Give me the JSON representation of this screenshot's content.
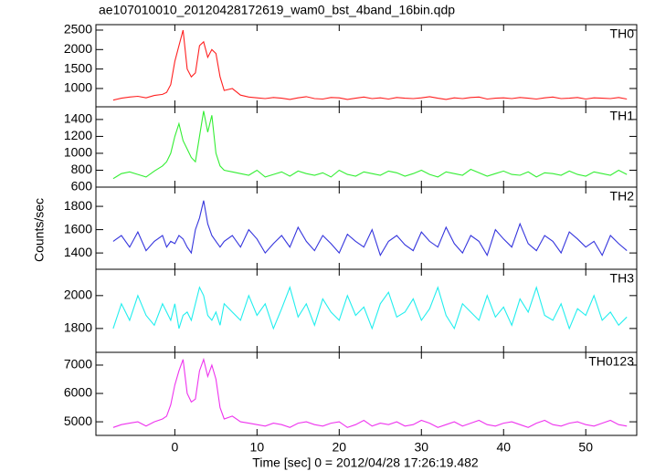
{
  "title": "ae107010010_20120428172619_wam0_bst_4band_16bin.qdp",
  "ylabel": "Counts/sec",
  "xlabel": "Time [sec] 0 = 2012/04/28 17:26:19.482",
  "chart_data": [
    {
      "type": "line",
      "title": "TH0",
      "color": "#ff2020",
      "x": [
        -7.5,
        -6.5,
        -5.5,
        -4.5,
        -3.5,
        -2.5,
        -1.5,
        -1,
        -0.5,
        0,
        0.5,
        1,
        1.5,
        2,
        2.5,
        3,
        3.5,
        4,
        4.5,
        5,
        5.5,
        6,
        7,
        8,
        9,
        10,
        11,
        12,
        13,
        14,
        15,
        16,
        17,
        18,
        19,
        20,
        21,
        22,
        23,
        24,
        25,
        26,
        27,
        28,
        29,
        30,
        31,
        32,
        33,
        34,
        35,
        36,
        37,
        38,
        39,
        40,
        41,
        42,
        43,
        44,
        45,
        46,
        47,
        48,
        49,
        50,
        51,
        52,
        53,
        54,
        55
      ],
      "values": [
        700,
        750,
        780,
        800,
        760,
        820,
        850,
        900,
        1100,
        1700,
        2100,
        2500,
        1500,
        1300,
        1400,
        2100,
        2200,
        1800,
        2000,
        1900,
        1300,
        950,
        1000,
        830,
        780,
        760,
        740,
        770,
        750,
        720,
        760,
        790,
        740,
        730,
        770,
        760,
        720,
        750,
        780,
        740,
        760,
        730,
        770,
        750,
        740,
        760,
        790,
        750,
        720,
        760,
        740,
        770,
        780,
        730,
        750,
        760,
        740,
        770,
        750,
        730,
        760,
        780,
        740,
        750,
        770,
        730,
        760,
        750,
        740,
        770,
        730
      ],
      "xlim": [
        -9.6,
        56.2
      ],
      "ylim": [
        530,
        2640
      ],
      "yticks": [
        1000,
        1500,
        2000,
        2500
      ]
    },
    {
      "type": "line",
      "title": "TH1",
      "color": "#33ee33",
      "x": [
        -7.5,
        -6.5,
        -5.5,
        -4.5,
        -3.5,
        -2.5,
        -1.5,
        -1,
        -0.5,
        0,
        0.5,
        1,
        1.5,
        2,
        2.5,
        3,
        3.5,
        4,
        4.5,
        5,
        5.5,
        6,
        7,
        8,
        9,
        10,
        11,
        12,
        13,
        14,
        15,
        16,
        17,
        18,
        19,
        20,
        21,
        22,
        23,
        24,
        25,
        26,
        27,
        28,
        29,
        30,
        31,
        32,
        33,
        34,
        35,
        36,
        37,
        38,
        39,
        40,
        41,
        42,
        43,
        44,
        45,
        46,
        47,
        48,
        49,
        50,
        51,
        52,
        53,
        54,
        55
      ],
      "values": [
        700,
        760,
        780,
        750,
        720,
        790,
        850,
        900,
        1000,
        1200,
        1350,
        1150,
        1050,
        950,
        900,
        1200,
        1500,
        1250,
        1450,
        1000,
        850,
        800,
        780,
        760,
        740,
        800,
        720,
        750,
        780,
        730,
        790,
        760,
        740,
        770,
        720,
        800,
        750,
        730,
        780,
        760,
        740,
        790,
        770,
        730,
        760,
        800,
        750,
        720,
        780,
        760,
        740,
        810,
        770,
        730,
        760,
        790,
        750,
        740,
        780,
        720,
        770,
        760,
        740,
        790,
        750,
        730,
        780,
        760,
        740,
        800,
        750
      ],
      "xlim": [
        -9.6,
        56.2
      ],
      "ylim": [
        600,
        1550
      ],
      "yticks": [
        600,
        800,
        1000,
        1200,
        1400
      ]
    },
    {
      "type": "line",
      "title": "TH2",
      "color": "#3535dd",
      "x": [
        -7.5,
        -6.5,
        -5.5,
        -4.5,
        -3.5,
        -2.5,
        -1.5,
        -1,
        -0.5,
        0,
        0.5,
        1,
        1.5,
        2,
        2.5,
        3,
        3.5,
        4,
        4.5,
        5,
        5.5,
        6,
        7,
        8,
        9,
        10,
        11,
        12,
        13,
        14,
        15,
        16,
        17,
        18,
        19,
        20,
        21,
        22,
        23,
        24,
        25,
        26,
        27,
        28,
        29,
        30,
        31,
        32,
        33,
        34,
        35,
        36,
        37,
        38,
        39,
        40,
        41,
        42,
        43,
        44,
        45,
        46,
        47,
        48,
        49,
        50,
        51,
        52,
        53,
        54,
        55
      ],
      "values": [
        1500,
        1550,
        1450,
        1580,
        1420,
        1500,
        1550,
        1450,
        1500,
        1480,
        1550,
        1520,
        1450,
        1400,
        1600,
        1700,
        1850,
        1650,
        1550,
        1500,
        1450,
        1500,
        1550,
        1450,
        1600,
        1520,
        1400,
        1480,
        1550,
        1450,
        1620,
        1500,
        1420,
        1550,
        1480,
        1400,
        1560,
        1500,
        1450,
        1600,
        1380,
        1500,
        1550,
        1470,
        1420,
        1580,
        1500,
        1450,
        1620,
        1480,
        1400,
        1550,
        1500,
        1380,
        1600,
        1520,
        1450,
        1650,
        1480,
        1420,
        1550,
        1500,
        1400,
        1580,
        1520,
        1450,
        1500,
        1380,
        1550,
        1480,
        1420
      ],
      "xlim": [
        -9.6,
        56.2
      ],
      "ylim": [
        1260,
        1965
      ],
      "yticks": [
        1400,
        1600,
        1800
      ]
    },
    {
      "type": "line",
      "title": "TH3",
      "color": "#22eeee",
      "x": [
        -7.5,
        -6.5,
        -5.5,
        -4.5,
        -3.5,
        -2.5,
        -1.5,
        -1,
        -0.5,
        0,
        0.5,
        1,
        1.5,
        2,
        2.5,
        3,
        3.5,
        4,
        4.5,
        5,
        5.5,
        6,
        7,
        8,
        9,
        10,
        11,
        12,
        13,
        14,
        15,
        16,
        17,
        18,
        19,
        20,
        21,
        22,
        23,
        24,
        25,
        26,
        27,
        28,
        29,
        30,
        31,
        32,
        33,
        34,
        35,
        36,
        37,
        38,
        39,
        40,
        41,
        42,
        43,
        44,
        45,
        46,
        47,
        48,
        49,
        50,
        51,
        52,
        53,
        54,
        55
      ],
      "values": [
        1800,
        1950,
        1850,
        2000,
        1880,
        1820,
        1950,
        1900,
        1850,
        1950,
        1800,
        1880,
        1900,
        1850,
        1950,
        2050,
        2000,
        1880,
        1850,
        1900,
        1820,
        1950,
        1900,
        1850,
        2000,
        1880,
        1950,
        1800,
        1920,
        2050,
        1870,
        1950,
        1820,
        1980,
        1900,
        1850,
        2000,
        1880,
        1930,
        1800,
        1950,
        2020,
        1870,
        1900,
        1980,
        1850,
        1920,
        2050,
        1880,
        1800,
        1950,
        1900,
        1850,
        2000,
        1870,
        1930,
        1820,
        1980,
        1900,
        2050,
        1880,
        1850,
        1950,
        1800,
        1920,
        1880,
        2000,
        1850,
        1900,
        1820,
        1870
      ],
      "xlim": [
        -9.6,
        56.2
      ],
      "ylim": [
        1655,
        2160
      ],
      "yticks": [
        1800,
        2000
      ]
    },
    {
      "type": "line",
      "title": "TH0123",
      "color": "#ee33ee",
      "x": [
        -7.5,
        -6.5,
        -5.5,
        -4.5,
        -3.5,
        -2.5,
        -1.5,
        -1,
        -0.5,
        0,
        0.5,
        1,
        1.5,
        2,
        2.5,
        3,
        3.5,
        4,
        4.5,
        5,
        5.5,
        6,
        7,
        8,
        9,
        10,
        11,
        12,
        13,
        14,
        15,
        16,
        17,
        18,
        19,
        20,
        21,
        22,
        23,
        24,
        25,
        26,
        27,
        28,
        29,
        30,
        31,
        32,
        33,
        34,
        35,
        36,
        37,
        38,
        39,
        40,
        41,
        42,
        43,
        44,
        45,
        46,
        47,
        48,
        49,
        50,
        51,
        52,
        53,
        54,
        55
      ],
      "values": [
        4800,
        4900,
        4950,
        5000,
        4850,
        5000,
        5100,
        5200,
        5600,
        6300,
        6800,
        7200,
        6000,
        5700,
        5800,
        6800,
        7200,
        6600,
        7000,
        6500,
        5500,
        5100,
        5200,
        5000,
        4950,
        4900,
        4850,
        4950,
        4900,
        4800,
        4950,
        5000,
        4900,
        4850,
        4950,
        5000,
        4800,
        4900,
        5050,
        4850,
        4950,
        4900,
        5000,
        4850,
        4900,
        5050,
        4950,
        4800,
        4900,
        5000,
        4850,
        4950,
        5050,
        4900,
        4850,
        4950,
        5000,
        4900,
        4800,
        4950,
        5050,
        4900,
        4850,
        4950,
        5000,
        4900,
        4850,
        4950,
        5050,
        4900,
        4850
      ],
      "xlim": [
        -9.6,
        56.2
      ],
      "ylim": [
        4520,
        7450
      ],
      "yticks": [
        5000,
        6000,
        7000
      ],
      "xticks": [
        0,
        10,
        20,
        30,
        40,
        50
      ]
    }
  ]
}
